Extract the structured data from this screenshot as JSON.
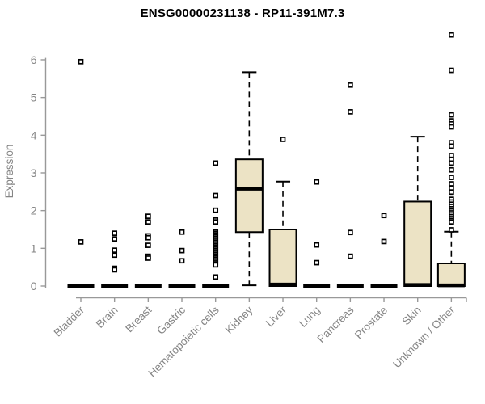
{
  "chart_data": {
    "type": "boxplot",
    "title": "ENSG00000231138 - RP11-391M7.3",
    "xlabel": "",
    "ylabel": "Expression",
    "ylim": [
      0,
      6.8
    ],
    "yticks": [
      0,
      1,
      2,
      3,
      4,
      5,
      6
    ],
    "grid": false,
    "legend": "none",
    "categories": [
      "Bladder",
      "Brain",
      "Breast",
      "Gastric",
      "Hematopoietic cells",
      "Kidney",
      "Liver",
      "Lung",
      "Pancreas",
      "Prostate",
      "Skin",
      "Unknown / Other"
    ],
    "series": [
      {
        "category": "Bladder",
        "q1": 0,
        "median": 0,
        "q3": 0.05,
        "whisker_low": 0,
        "whisker_high": 0.05,
        "outliers": [
          5.95,
          1.17
        ]
      },
      {
        "category": "Brain",
        "q1": 0,
        "median": 0,
        "q3": 0.05,
        "whisker_low": 0,
        "whisker_high": 0.05,
        "outliers": [
          1.4,
          1.25,
          0.95,
          0.82,
          0.47,
          0.43
        ]
      },
      {
        "category": "Breast",
        "q1": 0,
        "median": 0,
        "q3": 0.05,
        "whisker_low": 0,
        "whisker_high": 0.05,
        "outliers": [
          1.85,
          1.7,
          1.33,
          1.28,
          1.08,
          0.79,
          0.74
        ]
      },
      {
        "category": "Gastric",
        "q1": 0,
        "median": 0,
        "q3": 0.05,
        "whisker_low": 0,
        "whisker_high": 0.05,
        "outliers": [
          1.43,
          0.94,
          0.67
        ]
      },
      {
        "category": "Hematopoietic cells",
        "q1": 0,
        "median": 0,
        "q3": 0.05,
        "whisker_low": 0,
        "whisker_high": 0.05,
        "outliers": [
          3.26,
          2.4,
          2.01,
          1.75,
          1.7,
          1.43,
          1.39,
          1.35,
          1.31,
          1.27,
          1.23,
          1.19,
          1.15,
          1.11,
          1.07,
          1.03,
          0.99,
          0.95,
          0.91,
          0.87,
          0.83,
          0.79,
          0.75,
          0.71,
          0.67,
          0.63,
          0.59,
          0.56,
          0.24
        ]
      },
      {
        "category": "Kidney",
        "q1": 1.43,
        "median": 2.58,
        "q3": 3.36,
        "whisker_low": 0.02,
        "whisker_high": 5.67,
        "outliers": []
      },
      {
        "category": "Liver",
        "q1": 0,
        "median": 0.04,
        "q3": 1.5,
        "whisker_low": 0,
        "whisker_high": 2.77,
        "outliers": [
          3.89
        ]
      },
      {
        "category": "Lung",
        "q1": 0,
        "median": 0,
        "q3": 0.05,
        "whisker_low": 0,
        "whisker_high": 0.05,
        "outliers": [
          2.76,
          1.09,
          0.62
        ]
      },
      {
        "category": "Pancreas",
        "q1": 0,
        "median": 0,
        "q3": 0.05,
        "whisker_low": 0,
        "whisker_high": 0.05,
        "outliers": [
          5.33,
          4.62,
          1.42,
          0.79
        ]
      },
      {
        "category": "Prostate",
        "q1": 0,
        "median": 0,
        "q3": 0.05,
        "whisker_low": 0,
        "whisker_high": 0.05,
        "outliers": [
          1.87,
          1.18
        ]
      },
      {
        "category": "Skin",
        "q1": 0,
        "median": 0.03,
        "q3": 2.24,
        "whisker_low": 0,
        "whisker_high": 3.96,
        "outliers": []
      },
      {
        "category": "Unknown / Other",
        "q1": 0,
        "median": 0.02,
        "q3": 0.6,
        "whisker_low": 0,
        "whisker_high": 1.44,
        "outliers": [
          6.66,
          5.72,
          4.54,
          4.38,
          4.3,
          4.22,
          3.8,
          3.71,
          3.46,
          3.36,
          3.26,
          3.08,
          2.88,
          2.71,
          2.6,
          2.49,
          2.3,
          2.23,
          2.17,
          2.11,
          2.05,
          1.99,
          1.94,
          1.89,
          1.84,
          1.79,
          1.74,
          1.7,
          1.49
        ]
      }
    ]
  },
  "colors": {
    "box_fill": "#ece3c5",
    "box_stroke": "#000000",
    "median": "#000000",
    "whisker": "#000000",
    "outlier_stroke": "#000000",
    "outlier_fill": "#ffffff",
    "axis_line": "#999999",
    "axis_text": "#858585",
    "title": "#000000",
    "background": "#ffffff"
  }
}
